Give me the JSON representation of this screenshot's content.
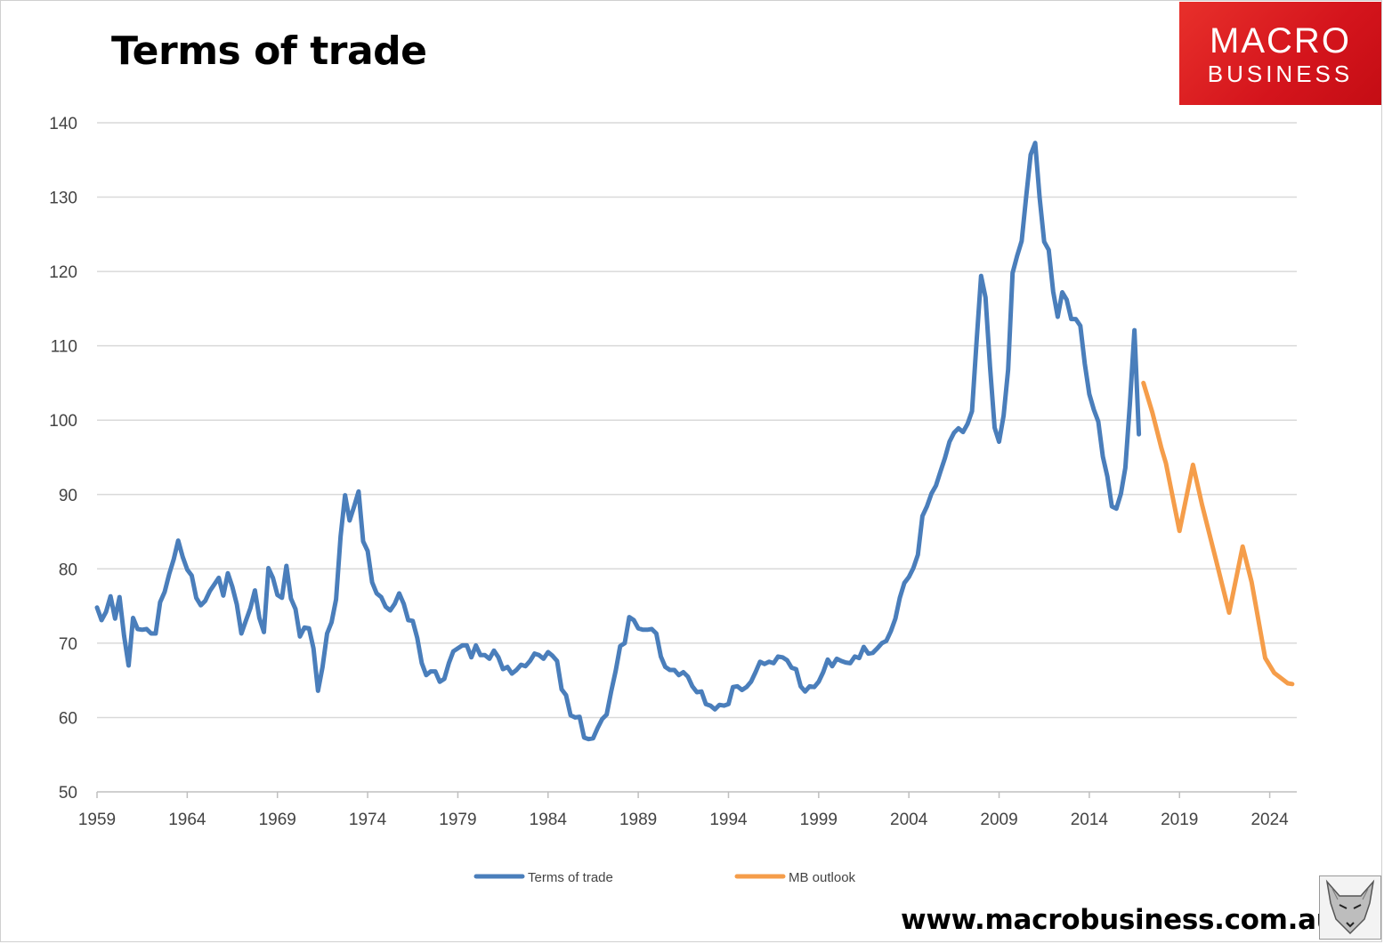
{
  "brand": {
    "logo_line1": "MACRO",
    "logo_line2": "BUSINESS",
    "website": "www.macrobusiness.com.au",
    "accent": "#d8141c"
  },
  "chart_data": {
    "type": "line",
    "title": "Terms of trade",
    "xlim": [
      1959,
      2025.5
    ],
    "ylim": [
      50,
      140
    ],
    "yticks": [
      50,
      60,
      70,
      80,
      90,
      100,
      110,
      120,
      130,
      140
    ],
    "xticks": [
      1959,
      1964,
      1969,
      1974,
      1979,
      1984,
      1989,
      1994,
      1999,
      2004,
      2009,
      2014,
      2019,
      2024
    ],
    "grid": true,
    "legend_position": "bottom",
    "series": [
      {
        "name": "Terms of trade",
        "color": "#4a7ebb",
        "points": [
          [
            1959.0,
            74.8
          ],
          [
            1959.25,
            73.1
          ],
          [
            1959.5,
            74.2
          ],
          [
            1959.75,
            76.3
          ],
          [
            1960.0,
            73.3
          ],
          [
            1960.25,
            76.2
          ],
          [
            1960.5,
            71.0
          ],
          [
            1960.75,
            67.0
          ],
          [
            1961.0,
            73.4
          ],
          [
            1961.25,
            71.9
          ],
          [
            1961.5,
            71.8
          ],
          [
            1961.75,
            71.9
          ],
          [
            1962.0,
            71.3
          ],
          [
            1962.25,
            71.3
          ],
          [
            1962.5,
            75.5
          ],
          [
            1962.75,
            76.9
          ],
          [
            1963.0,
            79.3
          ],
          [
            1963.25,
            81.3
          ],
          [
            1963.5,
            83.8
          ],
          [
            1963.75,
            81.6
          ],
          [
            1964.0,
            79.9
          ],
          [
            1964.25,
            79.1
          ],
          [
            1964.5,
            76.1
          ],
          [
            1964.75,
            75.1
          ],
          [
            1965.0,
            75.7
          ],
          [
            1965.25,
            77.0
          ],
          [
            1965.5,
            77.9
          ],
          [
            1965.75,
            78.8
          ],
          [
            1966.0,
            76.4
          ],
          [
            1966.25,
            79.4
          ],
          [
            1966.5,
            77.6
          ],
          [
            1966.75,
            75.2
          ],
          [
            1967.0,
            71.3
          ],
          [
            1967.25,
            73.0
          ],
          [
            1967.5,
            74.7
          ],
          [
            1967.75,
            77.1
          ],
          [
            1968.0,
            73.4
          ],
          [
            1968.25,
            71.5
          ],
          [
            1968.5,
            80.1
          ],
          [
            1968.75,
            78.8
          ],
          [
            1969.0,
            76.5
          ],
          [
            1969.25,
            76.1
          ],
          [
            1969.5,
            80.4
          ],
          [
            1969.75,
            76.0
          ],
          [
            1970.0,
            74.6
          ],
          [
            1970.25,
            70.9
          ],
          [
            1970.5,
            72.1
          ],
          [
            1970.75,
            72.0
          ],
          [
            1971.0,
            69.3
          ],
          [
            1971.25,
            63.6
          ],
          [
            1971.5,
            66.8
          ],
          [
            1971.75,
            71.3
          ],
          [
            1972.0,
            72.8
          ],
          [
            1972.25,
            75.9
          ],
          [
            1972.5,
            84.4
          ],
          [
            1972.75,
            89.9
          ],
          [
            1973.0,
            86.5
          ],
          [
            1973.25,
            88.4
          ],
          [
            1973.5,
            90.4
          ],
          [
            1973.75,
            83.7
          ],
          [
            1974.0,
            82.4
          ],
          [
            1974.25,
            78.2
          ],
          [
            1974.5,
            76.7
          ],
          [
            1974.75,
            76.2
          ],
          [
            1975.0,
            74.9
          ],
          [
            1975.25,
            74.4
          ],
          [
            1975.5,
            75.3
          ],
          [
            1975.75,
            76.7
          ],
          [
            1976.0,
            75.3
          ],
          [
            1976.25,
            73.1
          ],
          [
            1976.5,
            73.0
          ],
          [
            1976.75,
            70.7
          ],
          [
            1977.0,
            67.3
          ],
          [
            1977.25,
            65.7
          ],
          [
            1977.5,
            66.2
          ],
          [
            1977.75,
            66.2
          ],
          [
            1978.0,
            64.8
          ],
          [
            1978.25,
            65.2
          ],
          [
            1978.5,
            67.3
          ],
          [
            1978.75,
            68.9
          ],
          [
            1979.0,
            69.3
          ],
          [
            1979.25,
            69.7
          ],
          [
            1979.5,
            69.7
          ],
          [
            1979.75,
            68.1
          ],
          [
            1980.0,
            69.7
          ],
          [
            1980.25,
            68.4
          ],
          [
            1980.5,
            68.4
          ],
          [
            1980.75,
            67.9
          ],
          [
            1981.0,
            69.0
          ],
          [
            1981.25,
            68.1
          ],
          [
            1981.5,
            66.5
          ],
          [
            1981.75,
            66.8
          ],
          [
            1982.0,
            65.9
          ],
          [
            1982.25,
            66.4
          ],
          [
            1982.5,
            67.1
          ],
          [
            1982.75,
            66.9
          ],
          [
            1983.0,
            67.6
          ],
          [
            1983.25,
            68.6
          ],
          [
            1983.5,
            68.4
          ],
          [
            1983.75,
            67.9
          ],
          [
            1984.0,
            68.8
          ],
          [
            1984.25,
            68.3
          ],
          [
            1984.5,
            67.6
          ],
          [
            1984.75,
            63.8
          ],
          [
            1985.0,
            63.0
          ],
          [
            1985.25,
            60.3
          ],
          [
            1985.5,
            60.0
          ],
          [
            1985.75,
            60.1
          ],
          [
            1986.0,
            57.3
          ],
          [
            1986.25,
            57.1
          ],
          [
            1986.5,
            57.2
          ],
          [
            1986.75,
            58.6
          ],
          [
            1987.0,
            59.8
          ],
          [
            1987.25,
            60.4
          ],
          [
            1987.5,
            63.5
          ],
          [
            1987.75,
            66.3
          ],
          [
            1988.0,
            69.6
          ],
          [
            1988.25,
            70.0
          ],
          [
            1988.5,
            73.5
          ],
          [
            1988.75,
            73.1
          ],
          [
            1989.0,
            72.0
          ],
          [
            1989.25,
            71.8
          ],
          [
            1989.5,
            71.8
          ],
          [
            1989.75,
            71.9
          ],
          [
            1990.0,
            71.3
          ],
          [
            1990.25,
            68.2
          ],
          [
            1990.5,
            66.8
          ],
          [
            1990.75,
            66.4
          ],
          [
            1991.0,
            66.4
          ],
          [
            1991.25,
            65.7
          ],
          [
            1991.5,
            66.1
          ],
          [
            1991.75,
            65.5
          ],
          [
            1992.0,
            64.2
          ],
          [
            1992.25,
            63.4
          ],
          [
            1992.5,
            63.5
          ],
          [
            1992.75,
            61.8
          ],
          [
            1993.0,
            61.6
          ],
          [
            1993.25,
            61.1
          ],
          [
            1993.5,
            61.7
          ],
          [
            1993.75,
            61.6
          ],
          [
            1994.0,
            61.8
          ],
          [
            1994.25,
            64.1
          ],
          [
            1994.5,
            64.2
          ],
          [
            1994.75,
            63.7
          ],
          [
            1995.0,
            64.1
          ],
          [
            1995.25,
            64.8
          ],
          [
            1995.5,
            66.1
          ],
          [
            1995.75,
            67.5
          ],
          [
            1996.0,
            67.2
          ],
          [
            1996.25,
            67.5
          ],
          [
            1996.5,
            67.3
          ],
          [
            1996.75,
            68.2
          ],
          [
            1997.0,
            68.1
          ],
          [
            1997.25,
            67.7
          ],
          [
            1997.5,
            66.7
          ],
          [
            1997.75,
            66.5
          ],
          [
            1998.0,
            64.2
          ],
          [
            1998.25,
            63.5
          ],
          [
            1998.5,
            64.2
          ],
          [
            1998.75,
            64.1
          ],
          [
            1999.0,
            64.8
          ],
          [
            1999.25,
            66.1
          ],
          [
            1999.5,
            67.8
          ],
          [
            1999.75,
            66.9
          ],
          [
            2000.0,
            67.9
          ],
          [
            2000.25,
            67.6
          ],
          [
            2000.5,
            67.4
          ],
          [
            2000.75,
            67.3
          ],
          [
            2001.0,
            68.2
          ],
          [
            2001.25,
            68.0
          ],
          [
            2001.5,
            69.5
          ],
          [
            2001.75,
            68.6
          ],
          [
            2002.0,
            68.7
          ],
          [
            2002.25,
            69.3
          ],
          [
            2002.5,
            70.0
          ],
          [
            2002.75,
            70.3
          ],
          [
            2003.0,
            71.6
          ],
          [
            2003.25,
            73.3
          ],
          [
            2003.5,
            76.1
          ],
          [
            2003.75,
            78.1
          ],
          [
            2004.0,
            78.9
          ],
          [
            2004.25,
            80.1
          ],
          [
            2004.5,
            81.9
          ],
          [
            2004.75,
            87.1
          ],
          [
            2005.0,
            88.4
          ],
          [
            2005.25,
            90.1
          ],
          [
            2005.5,
            91.2
          ],
          [
            2005.75,
            93.1
          ],
          [
            2006.0,
            94.9
          ],
          [
            2006.25,
            97.1
          ],
          [
            2006.5,
            98.3
          ],
          [
            2006.75,
            98.9
          ],
          [
            2007.0,
            98.4
          ],
          [
            2007.25,
            99.5
          ],
          [
            2007.5,
            101.2
          ],
          [
            2007.75,
            110.5
          ],
          [
            2008.0,
            119.4
          ],
          [
            2008.25,
            116.5
          ],
          [
            2008.5,
            107.1
          ],
          [
            2008.75,
            99.0
          ],
          [
            2009.0,
            97.1
          ],
          [
            2009.25,
            100.6
          ],
          [
            2009.5,
            106.8
          ],
          [
            2009.75,
            119.8
          ],
          [
            2010.0,
            122.1
          ],
          [
            2010.25,
            124.1
          ],
          [
            2010.5,
            130.0
          ],
          [
            2010.75,
            135.7
          ],
          [
            2011.0,
            137.3
          ],
          [
            2011.25,
            129.9
          ],
          [
            2011.5,
            124.0
          ],
          [
            2011.75,
            122.9
          ],
          [
            2012.0,
            117.3
          ],
          [
            2012.25,
            113.9
          ],
          [
            2012.5,
            117.2
          ],
          [
            2012.75,
            116.2
          ],
          [
            2013.0,
            113.6
          ],
          [
            2013.25,
            113.6
          ],
          [
            2013.5,
            112.7
          ],
          [
            2013.75,
            107.6
          ],
          [
            2014.0,
            103.5
          ],
          [
            2014.25,
            101.4
          ],
          [
            2014.5,
            99.8
          ],
          [
            2014.75,
            95.1
          ],
          [
            2015.0,
            92.4
          ],
          [
            2015.25,
            88.4
          ],
          [
            2015.5,
            88.1
          ],
          [
            2015.75,
            90.1
          ],
          [
            2016.0,
            93.6
          ],
          [
            2016.25,
            102.2
          ],
          [
            2016.5,
            112.1
          ],
          [
            2016.75,
            98.1
          ]
        ]
      },
      {
        "name": "MB outlook",
        "color": "#f59d4a",
        "points": [
          [
            2017.0,
            105.0
          ],
          [
            2017.5,
            101.0
          ],
          [
            2018.0,
            96.2
          ],
          [
            2018.25,
            94.2
          ],
          [
            2019.0,
            85.1
          ],
          [
            2019.75,
            94.0
          ],
          [
            2020.25,
            88.6
          ],
          [
            2021.0,
            81.4
          ],
          [
            2021.75,
            74.1
          ],
          [
            2022.5,
            83.0
          ],
          [
            2023.0,
            78.2
          ],
          [
            2023.75,
            68.0
          ],
          [
            2024.25,
            66.0
          ],
          [
            2025.0,
            64.6
          ],
          [
            2025.25,
            64.5
          ]
        ]
      }
    ]
  }
}
